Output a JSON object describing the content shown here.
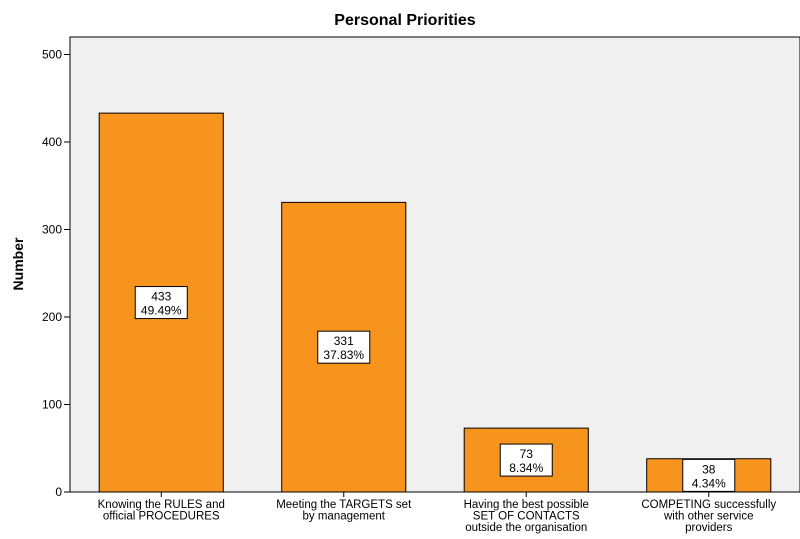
{
  "chart_data": {
    "type": "bar",
    "title": "Personal Priorities",
    "xlabel": "",
    "ylabel": "Number",
    "ylim": [
      0,
      520
    ],
    "yticks": [
      0,
      100,
      200,
      300,
      400,
      500
    ],
    "grid": false,
    "bar_color": "#f7941d",
    "plot_background": "#f0f0f0",
    "categories": [
      [
        "Knowing the RULES and",
        "official PROCEDURES"
      ],
      [
        "Meeting the TARGETS set",
        "by management"
      ],
      [
        "Having the best possible",
        "SET OF CONTACTS",
        "outside the organisation"
      ],
      [
        "COMPETING successfully",
        "with other service",
        "providers"
      ]
    ],
    "values": [
      433,
      331,
      73,
      38
    ],
    "percent_labels": [
      "49.49%",
      "37.83%",
      "8.34%",
      "4.34%"
    ]
  }
}
